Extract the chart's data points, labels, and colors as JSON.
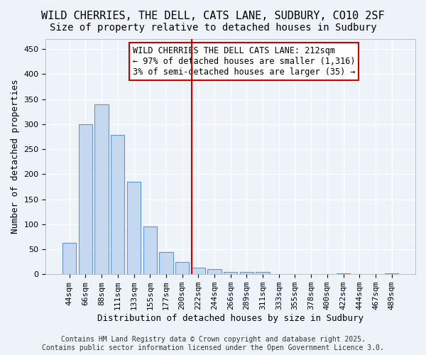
{
  "title_line1": "WILD CHERRIES, THE DELL, CATS LANE, SUDBURY, CO10 2SF",
  "title_line2": "Size of property relative to detached houses in Sudbury",
  "xlabel": "Distribution of detached houses by size in Sudbury",
  "ylabel": "Number of detached properties",
  "bar_labels": [
    "44sqm",
    "66sqm",
    "88sqm",
    "111sqm",
    "133sqm",
    "155sqm",
    "177sqm",
    "200sqm",
    "222sqm",
    "244sqm",
    "266sqm",
    "289sqm",
    "311sqm",
    "333sqm",
    "355sqm",
    "378sqm",
    "400sqm",
    "422sqm",
    "444sqm",
    "467sqm",
    "489sqm"
  ],
  "bar_values": [
    63,
    300,
    340,
    278,
    185,
    95,
    45,
    25,
    13,
    10,
    5,
    5,
    4,
    0,
    0,
    0,
    0,
    2,
    0,
    0,
    2
  ],
  "bar_color": "#c5d8f0",
  "bar_edge_color": "#5b9bd5",
  "vline_x": 7.575,
  "vline_color": "#cc0000",
  "annotation_text": "WILD CHERRIES THE DELL CATS LANE: 212sqm\n← 97% of detached houses are smaller (1,316)\n3% of semi-detached houses are larger (35) →",
  "annotation_box_color": "#ffffff",
  "annotation_box_edge": "#cc0000",
  "ylim": [
    0,
    470
  ],
  "yticks": [
    0,
    50,
    100,
    150,
    200,
    250,
    300,
    350,
    400,
    450
  ],
  "footnote": "Contains HM Land Registry data © Crown copyright and database right 2025.\nContains public sector information licensed under the Open Government Licence 3.0.",
  "background_color": "#eef2f9",
  "grid_color": "#ffffff",
  "title_fontsize": 11,
  "subtitle_fontsize": 10,
  "axis_label_fontsize": 9,
  "tick_fontsize": 8,
  "annotation_fontsize": 8.5,
  "footnote_fontsize": 7
}
